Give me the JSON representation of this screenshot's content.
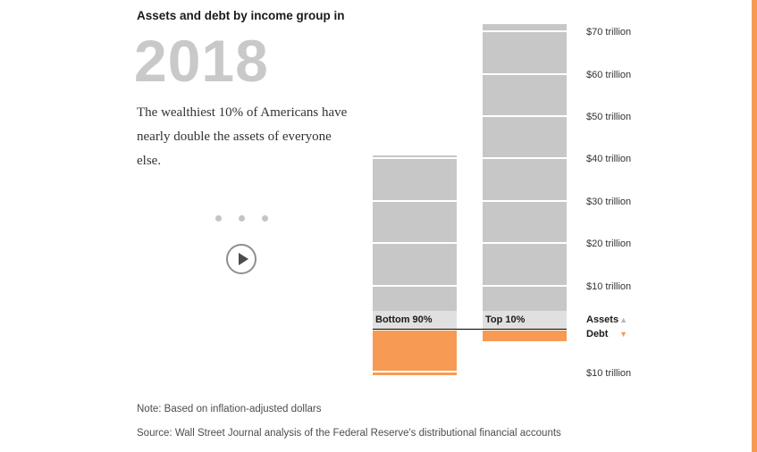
{
  "header": {
    "kicker": "Assets and debt by income group in",
    "year": "2018",
    "description": "The wealthiest 10% of Americans have nearly double the assets of everyone else."
  },
  "notes": {
    "note": "Note: Based on inflation-adjusted dollars",
    "source": "Source: Wall Street Journal analysis of the Federal Reserve's distributional financial accounts"
  },
  "colors": {
    "assets_bar": "#c7c7c7",
    "debt_bar": "#f79b54",
    "assets_marker": "#b5b5b5",
    "debt_marker": "#f79b54",
    "edge_accent": "#f79b54"
  },
  "chart_data": {
    "type": "bar",
    "subtype": "diverging-stacked-segmented",
    "title": "Assets and debt by income group in 2018",
    "categories": [
      "Bottom 90%",
      "Top 10%"
    ],
    "series": [
      {
        "name": "Assets",
        "direction": "up",
        "color": "#c7c7c7",
        "values": [
          41,
          72
        ]
      },
      {
        "name": "Debt",
        "direction": "down",
        "color": "#f79b54",
        "values": [
          11,
          3
        ]
      }
    ],
    "unit": "trillion USD",
    "tick_format": "${v} trillion",
    "axis_ticks_up": [
      70,
      60,
      50,
      40,
      30,
      20,
      10
    ],
    "axis_ticks_down": [
      10
    ],
    "segment_size": 10,
    "ylim_up": 75,
    "ylim_down": 12,
    "grid": false,
    "legend_position": "right",
    "legend": [
      {
        "label": "Assets",
        "marker": "▲",
        "marker_color": "#b5b5b5"
      },
      {
        "label": "Debt",
        "marker": "▼",
        "marker_color": "#f79b54"
      }
    ]
  }
}
